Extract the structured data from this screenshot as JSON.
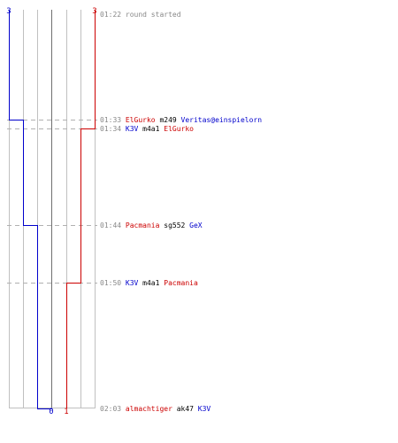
{
  "colors": {
    "red": "#cc0000",
    "blue": "#0000cc",
    "black": "#000000",
    "time": "#888888",
    "grid": "#c0c0c0",
    "center": "#707070",
    "dash": "#b0b0b0"
  },
  "chart_data": {
    "type": "line",
    "top_labels": {
      "left": "3",
      "right": "3"
    },
    "bottom_labels": {
      "left": "0",
      "right": "1"
    },
    "series": [
      {
        "team": "blue",
        "values": [
          3,
          2,
          1,
          0
        ]
      },
      {
        "team": "red",
        "values": [
          3,
          2,
          1
        ]
      }
    ],
    "events": [
      {
        "time": "01:22",
        "parts": [
          {
            "t": "round started",
            "c": "time"
          }
        ]
      },
      {
        "time": "01:33",
        "parts": [
          {
            "t": "ElGurko",
            "c": "red"
          },
          {
            "t": " m249 ",
            "c": "black"
          },
          {
            "t": "Veritas@einspielorn",
            "c": "blue"
          }
        ]
      },
      {
        "time": "01:34",
        "parts": [
          {
            "t": "K3V",
            "c": "blue"
          },
          {
            "t": " m4a1 ",
            "c": "black"
          },
          {
            "t": "ElGurko",
            "c": "red"
          }
        ]
      },
      {
        "time": "01:44",
        "parts": [
          {
            "t": "Pacmania",
            "c": "red"
          },
          {
            "t": " sg552 ",
            "c": "black"
          },
          {
            "t": "GeX",
            "c": "blue"
          }
        ]
      },
      {
        "time": "01:50",
        "parts": [
          {
            "t": "K3V",
            "c": "blue"
          },
          {
            "t": " m4a1 ",
            "c": "black"
          },
          {
            "t": "Pacmania",
            "c": "red"
          }
        ]
      },
      {
        "time": "02:03",
        "parts": [
          {
            "t": "almachtiger",
            "c": "red"
          },
          {
            "t": " ak47 ",
            "c": "black"
          },
          {
            "t": "K3V",
            "c": "blue"
          }
        ]
      }
    ]
  }
}
